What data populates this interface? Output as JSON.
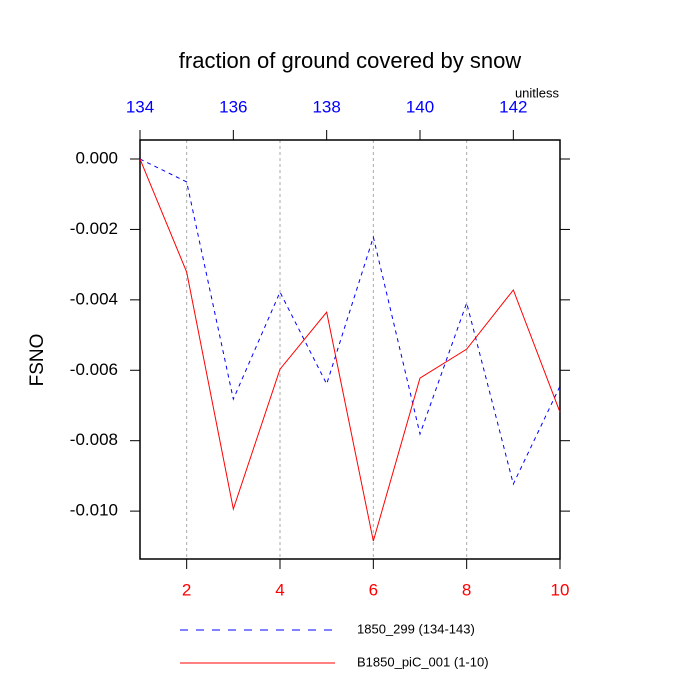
{
  "chart_data": {
    "type": "line",
    "title": "fraction of ground covered by snow",
    "y_label": "FSNO",
    "units": "unitless",
    "xlim": [
      1,
      10
    ],
    "xticks": [
      2,
      4,
      6,
      8,
      10
    ],
    "xtick_color": "#ff0000",
    "x2lim": [
      134,
      143
    ],
    "x2ticks": [
      134,
      136,
      138,
      140,
      142
    ],
    "x2tick_color": "#0000ff",
    "ylim": [
      -0.01136,
      0.00054
    ],
    "yticks": [
      {
        "value": 0,
        "label": "0.000"
      },
      {
        "value": -0.002,
        "label": "-0.002"
      },
      {
        "value": -0.004,
        "label": "-0.004"
      },
      {
        "value": -0.006,
        "label": "-0.006"
      },
      {
        "value": -0.008,
        "label": "-0.008"
      },
      {
        "value": -0.01,
        "label": "-0.010"
      }
    ],
    "xgrid": true,
    "series": [
      {
        "name": "1850_299 (134-143)",
        "color": "#0000ff",
        "dashed": true,
        "axis": "x2",
        "x": [
          134,
          135,
          136,
          137,
          138,
          139,
          140,
          141,
          142,
          143
        ],
        "values": [
          0,
          -0.00065,
          -0.00682,
          -0.00378,
          -0.00639,
          -0.00222,
          -0.00781,
          -0.00409,
          -0.00923,
          -0.00645
        ]
      },
      {
        "name": "B1850_piC_001 (1-10)",
        "color": "#ff0000",
        "dashed": false,
        "x": [
          1,
          2,
          3,
          4,
          5,
          6,
          7,
          8,
          9,
          10
        ],
        "values": [
          0,
          -0.00321,
          -0.00994,
          -0.00597,
          -0.00435,
          -0.01085,
          -0.00622,
          -0.0054,
          -0.00372,
          -0.00719
        ]
      }
    ]
  }
}
